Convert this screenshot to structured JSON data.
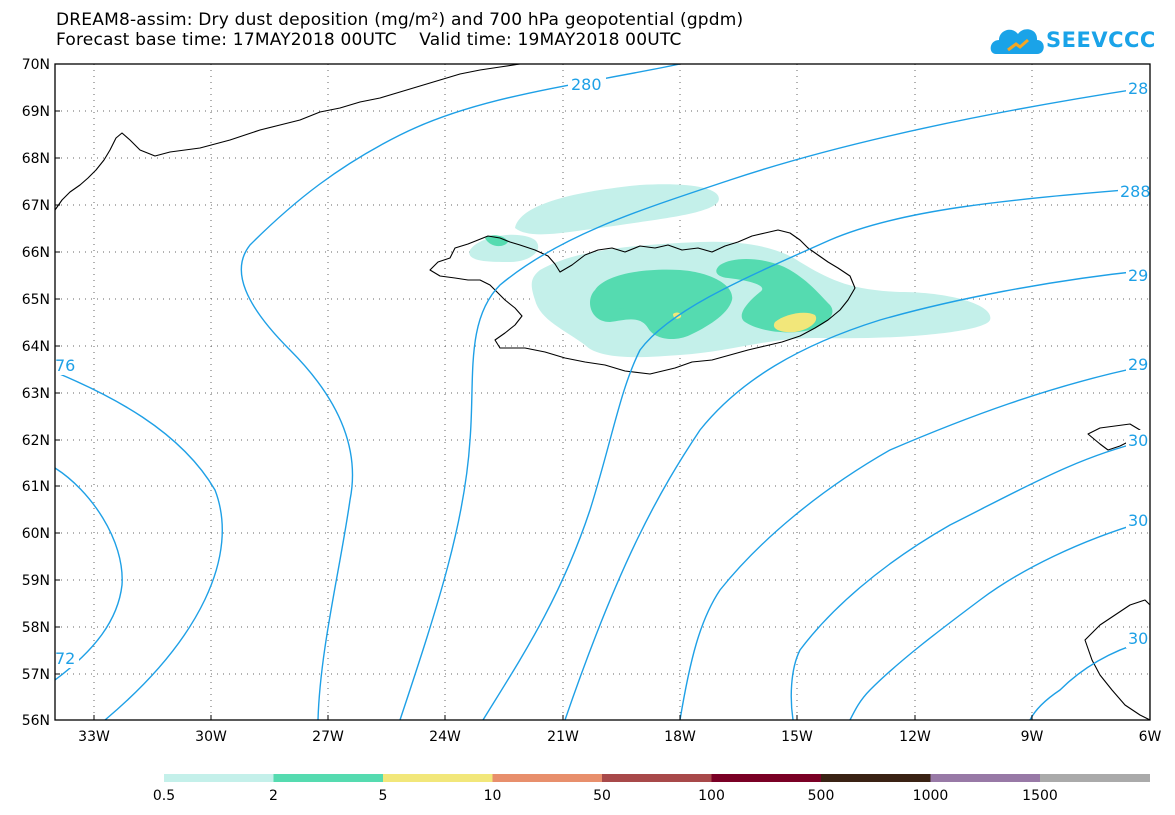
{
  "title": {
    "line1": "DREAM8-assim: Dry dust deposition (mg/m²) and 700 hPa geopotential (gpdm)",
    "line2": "Forecast base time: 17MAY2018 00UTC    Valid time: 19MAY2018 00UTC"
  },
  "logo": {
    "text": "SEEVCCC"
  },
  "map": {
    "lat_labels": [
      "70N",
      "69N",
      "68N",
      "67N",
      "66N",
      "65N",
      "64N",
      "63N",
      "62N",
      "61N",
      "60N",
      "59N",
      "58N",
      "57N",
      "56N"
    ],
    "lon_labels": [
      "33W",
      "30W",
      "27W",
      "24W",
      "21W",
      "18W",
      "15W",
      "12W",
      "9W",
      "6W"
    ],
    "contour_labels": [
      "280",
      "28",
      "288",
      "29",
      "29",
      "30",
      "30",
      "30",
      "76",
      "72"
    ]
  },
  "colorbar": {
    "labels": [
      "0.5",
      "2",
      "5",
      "10",
      "50",
      "100",
      "500",
      "1000",
      "1500"
    ],
    "colors": [
      "#c4f0ea",
      "#55dbb0",
      "#f2e77a",
      "#e88f6c",
      "#a8494a",
      "#7a0025",
      "#3a2214",
      "#9879a6",
      "#aaaaaa"
    ]
  },
  "colors": {
    "contour": "#1ea0e6",
    "coast": "#000000",
    "grid": "#666666"
  }
}
